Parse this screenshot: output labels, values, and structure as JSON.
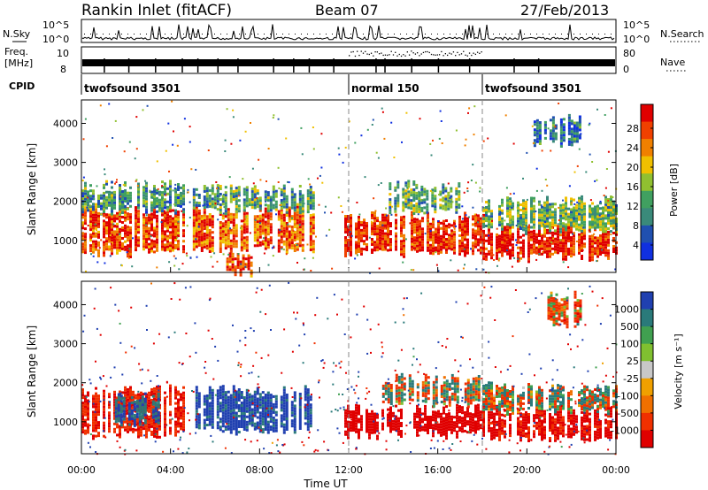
{
  "header": {
    "station": "Rankin Inlet (fitACF)",
    "beam": "Beam 07",
    "date": "27/Feb/2013"
  },
  "top_panels": {
    "nsky_label": "N.Sky",
    "nsearch_label": "N.Search",
    "noise_ticks": [
      "10^5",
      "10^0"
    ],
    "freq_label_1": "Freq.",
    "freq_label_2": "[MHz]",
    "freq_ticks": [
      "10",
      "8"
    ],
    "nave_label": "Nave",
    "nave_ticks": [
      "80",
      "0"
    ],
    "cpid_label": "CPID",
    "cpid_segments": [
      {
        "name": "twofsound 3501",
        "start": 0,
        "end": 12
      },
      {
        "name": "normal 150",
        "start": 12,
        "end": 18
      },
      {
        "name": "twofsound 3501",
        "start": 18,
        "end": 24
      }
    ]
  },
  "chart_data": [
    {
      "type": "heatmap",
      "title": "Power",
      "xlabel": "Time UT",
      "ylabel": "Slant Range [km]",
      "xlim": [
        0,
        24
      ],
      "ylim": [
        180,
        4600
      ],
      "y_ticks": [
        "1000",
        "2000",
        "3000",
        "4000"
      ],
      "colorbar": {
        "label": "Power [dB]",
        "ticks": [
          "4",
          "8",
          "12",
          "16",
          "20",
          "24",
          "28"
        ],
        "range": [
          0,
          30
        ],
        "colors": [
          "#1030e0",
          "#2050b0",
          "#3a8a7a",
          "#40a060",
          "#90c030",
          "#f0c000",
          "#f08000",
          "#f04000",
          "#e00000"
        ]
      },
      "bands": [
        {
          "t0": 0.0,
          "t1": 4.6,
          "r0": 700,
          "r1": 1800,
          "value": 26
        },
        {
          "t0": 0.0,
          "t1": 4.6,
          "r0": 1800,
          "r1": 2400,
          "value": 10
        },
        {
          "t0": 5.0,
          "t1": 10.4,
          "r0": 800,
          "r1": 1800,
          "value": 24
        },
        {
          "t0": 5.0,
          "t1": 10.4,
          "r0": 1800,
          "r1": 2300,
          "value": 11
        },
        {
          "t0": 6.5,
          "t1": 7.6,
          "r0": 200,
          "r1": 600,
          "value": 26
        },
        {
          "t0": 11.8,
          "t1": 18.0,
          "r0": 700,
          "r1": 1600,
          "value": 27
        },
        {
          "t0": 13.8,
          "t1": 17.0,
          "r0": 1800,
          "r1": 2400,
          "value": 12
        },
        {
          "t0": 18.0,
          "t1": 24.0,
          "r0": 600,
          "r1": 1300,
          "value": 28
        },
        {
          "t0": 18.0,
          "t1": 24.0,
          "r0": 1300,
          "r1": 2000,
          "value": 13
        },
        {
          "t0": 20.3,
          "t1": 22.5,
          "r0": 3500,
          "r1": 4100,
          "value": 7
        }
      ]
    },
    {
      "type": "heatmap",
      "title": "Velocity",
      "xlabel": "Time UT",
      "ylabel": "Slant Range [km]",
      "xlim": [
        0,
        24
      ],
      "ylim": [
        180,
        4600
      ],
      "x_ticks": [
        "00:00",
        "04:00",
        "08:00",
        "12:00",
        "16:00",
        "20:00",
        "00:00"
      ],
      "y_ticks": [
        "1000",
        "2000",
        "3000",
        "4000"
      ],
      "colorbar": {
        "label": "Velocity [m s⁻¹]",
        "ticks": [
          "1000",
          "500",
          "100",
          "25",
          "-25",
          "-100",
          "-500",
          "-1000"
        ],
        "range": [
          -1000,
          1000
        ],
        "colors": [
          "#2040b0",
          "#2a7a7a",
          "#40a050",
          "#80c030",
          "#c8c8c8",
          "#f0a000",
          "#f07000",
          "#f03000",
          "#e00000"
        ]
      },
      "bands": [
        {
          "t0": 0.0,
          "t1": 4.6,
          "r0": 700,
          "r1": 1800,
          "value": -200
        },
        {
          "t0": 1.5,
          "t1": 3.5,
          "r0": 1000,
          "r1": 1600,
          "value": 200
        },
        {
          "t0": 5.0,
          "t1": 10.4,
          "r0": 800,
          "r1": 1800,
          "value": 300
        },
        {
          "t0": 11.8,
          "t1": 18.0,
          "r0": 700,
          "r1": 1300,
          "value": -400
        },
        {
          "t0": 13.5,
          "t1": 18.0,
          "r0": 1500,
          "r1": 2100,
          "value": 0
        },
        {
          "t0": 18.0,
          "t1": 24.0,
          "r0": 600,
          "r1": 1300,
          "value": -300
        },
        {
          "t0": 18.0,
          "t1": 24.0,
          "r0": 1300,
          "r1": 1900,
          "value": 0
        },
        {
          "t0": 20.8,
          "t1": 22.5,
          "r0": 3500,
          "r1": 4200,
          "value": -100
        }
      ]
    }
  ]
}
